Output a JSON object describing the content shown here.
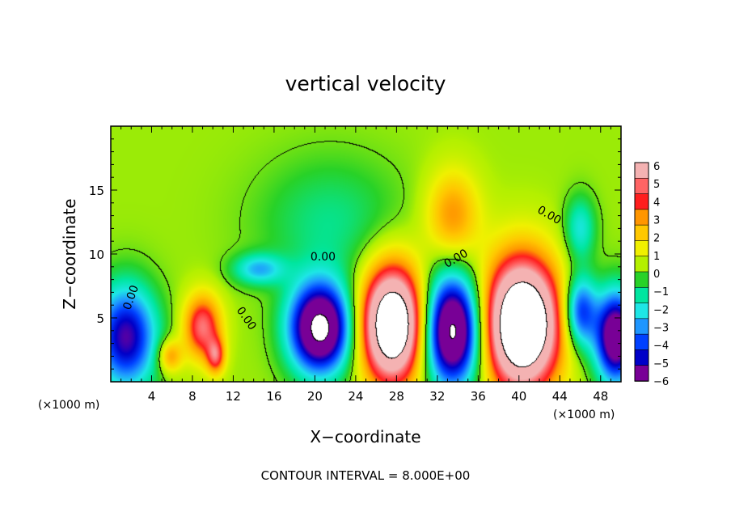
{
  "chart_data": {
    "type": "heatmap",
    "title": "vertical velocity",
    "xlabel": "X−coordinate",
    "ylabel": "Z−coordinate",
    "x_unit_left": "(×1000 m)",
    "x_unit_right": "(×1000 m)",
    "xlim": [
      0,
      50
    ],
    "ylim": [
      0,
      20
    ],
    "x_ticks": [
      4,
      8,
      12,
      16,
      20,
      24,
      28,
      32,
      36,
      40,
      44,
      48
    ],
    "y_ticks": [
      5,
      10,
      15
    ],
    "footer": "CONTOUR INTERVAL = 8.000E+00",
    "colorbar": {
      "min": -6,
      "max": 6,
      "labels": [
        "6",
        "5",
        "4",
        "3",
        "2",
        "1",
        "0",
        "−1",
        "−2",
        "−3",
        "−4",
        "−5",
        "−6"
      ],
      "colors": [
        "#f4b2b2",
        "#ff6464",
        "#ff1e1e",
        "#ff9600",
        "#ffc800",
        "#f0f000",
        "#b4f000",
        "#28d228",
        "#00e6a0",
        "#1ee6e6",
        "#1e96ff",
        "#0040ff",
        "#0000c8",
        "#780096"
      ]
    },
    "contour_labels": [
      {
        "text": "0.00",
        "x": 2.3,
        "z": 6.5,
        "angle": -70
      },
      {
        "text": "0.00",
        "x": 13.0,
        "z": 4.8,
        "angle": 55
      },
      {
        "text": "0.00",
        "x": 20.8,
        "z": 9.5,
        "angle": 0
      },
      {
        "text": "0.00",
        "x": 34.0,
        "z": 9.4,
        "angle": -30
      },
      {
        "text": "0.00",
        "x": 42.8,
        "z": 12.8,
        "angle": 30
      }
    ],
    "features": [
      {
        "kind": "updraft",
        "x": 1.5,
        "z": 3.5,
        "rx": 3.0,
        "rz": 4.0,
        "peak": -6
      },
      {
        "kind": "updraft",
        "x": 5.8,
        "z": 2.0,
        "rx": 1.2,
        "rz": 1.3,
        "peak": 3
      },
      {
        "kind": "updraft",
        "x": 9.0,
        "z": 4.3,
        "rx": 1.8,
        "rz": 2.5,
        "peak": 5
      },
      {
        "kind": "updraft",
        "x": 10.3,
        "z": 2.0,
        "rx": 0.9,
        "rz": 1.4,
        "peak": 4
      },
      {
        "kind": "updraft",
        "x": 20.5,
        "z": 4.2,
        "rx": 3.0,
        "rz": 3.5,
        "peak": -9
      },
      {
        "kind": "updraft",
        "x": 27.6,
        "z": 4.5,
        "rx": 3.0,
        "rz": 4.5,
        "peak": 11
      },
      {
        "kind": "updraft",
        "x": 33.5,
        "z": 4.0,
        "rx": 2.8,
        "rz": 4.3,
        "peak": -9
      },
      {
        "kind": "updraft",
        "x": 40.3,
        "z": 4.5,
        "rx": 3.6,
        "rz": 5.0,
        "peak": 12
      },
      {
        "kind": "updraft",
        "x": 46.0,
        "z": 5.5,
        "rx": 1.6,
        "rz": 2.8,
        "peak": -5
      },
      {
        "kind": "updraft",
        "x": 49.5,
        "z": 3.5,
        "rx": 2.0,
        "rz": 3.5,
        "peak": -8
      },
      {
        "kind": "updraft",
        "x": 33.5,
        "z": 13.0,
        "rx": 2.6,
        "rz": 3.5,
        "peak": 3
      },
      {
        "kind": "updraft",
        "x": 14.5,
        "z": 8.8,
        "rx": 2.5,
        "rz": 1.2,
        "peak": -3
      },
      {
        "kind": "updraft",
        "x": 21.5,
        "z": 12.5,
        "rx": 7.0,
        "rz": 5.0,
        "peak": -1.5
      },
      {
        "kind": "updraft",
        "x": 46.0,
        "z": 12.0,
        "rx": 1.5,
        "rz": 2.5,
        "peak": -2.5
      }
    ]
  }
}
